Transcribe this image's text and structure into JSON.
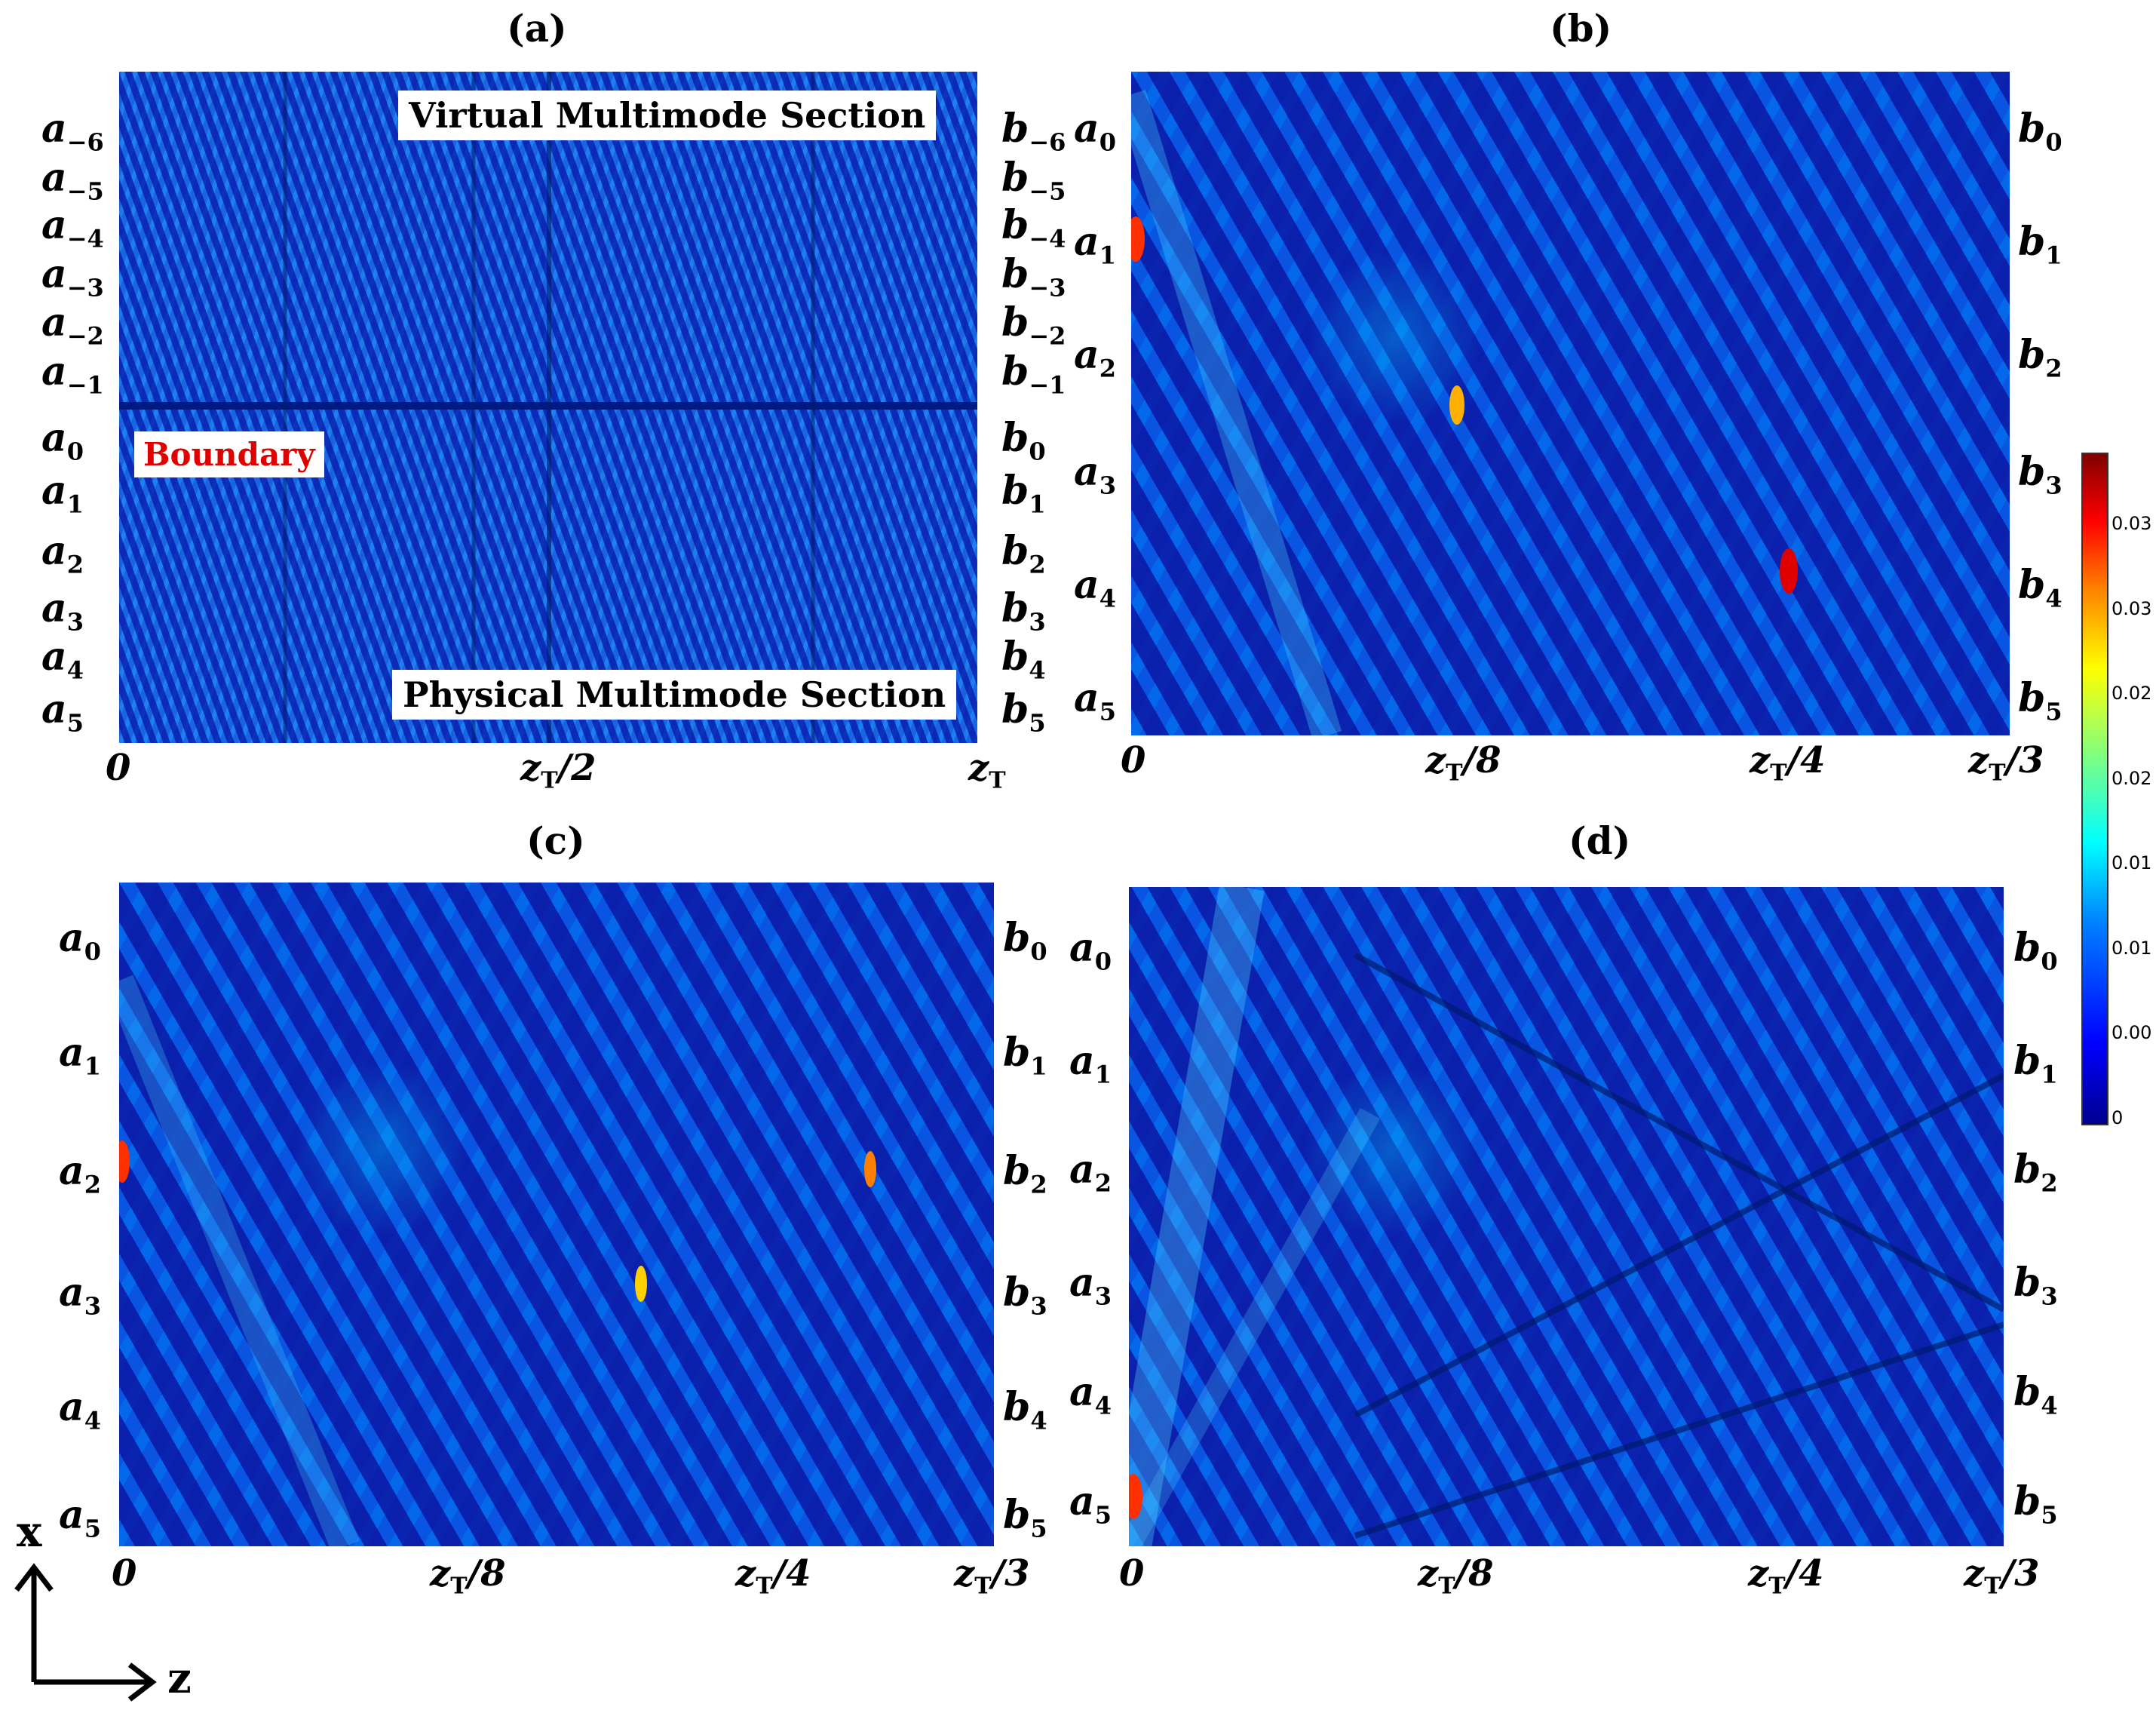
{
  "chart_data": [
    {
      "panel": "(a)",
      "type": "heatmap",
      "x_ticks": [
        "0",
        "z_T/2",
        "z_T"
      ],
      "y_left_labels": [
        "a_-6",
        "a_-5",
        "a_-4",
        "a_-3",
        "a_-2",
        "a_-1",
        "a_0",
        "a_1",
        "a_2",
        "a_3",
        "a_4",
        "a_5"
      ],
      "y_right_labels": [
        "b_-6",
        "b_-5",
        "b_-4",
        "b_-3",
        "b_-2",
        "b_-1",
        "b_0",
        "b_1",
        "b_2",
        "b_3",
        "b_4",
        "b_5"
      ],
      "annotations": [
        "Virtual Multimode Section",
        "Physical Multimode Section",
        "Boundary"
      ]
    },
    {
      "panel": "(b)",
      "type": "heatmap",
      "x_ticks": [
        "0",
        "z_T/8",
        "z_T/4",
        "z_T/3"
      ],
      "y_left_labels": [
        "a_0",
        "a_1",
        "a_2",
        "a_3",
        "a_4",
        "a_5"
      ],
      "y_right_labels": [
        "b_0",
        "b_1",
        "b_2",
        "b_3",
        "b_4",
        "b_5"
      ]
    },
    {
      "panel": "(c)",
      "type": "heatmap",
      "x_ticks": [
        "0",
        "z_T/8",
        "z_T/4",
        "z_T/3"
      ],
      "y_left_labels": [
        "a_0",
        "a_1",
        "a_2",
        "a_3",
        "a_4",
        "a_5"
      ],
      "y_right_labels": [
        "b_0",
        "b_1",
        "b_2",
        "b_3",
        "b_4",
        "b_5"
      ]
    },
    {
      "panel": "(d)",
      "type": "heatmap",
      "x_ticks": [
        "0",
        "z_T/8",
        "z_T/4",
        "z_T/3"
      ],
      "y_left_labels": [
        "a_0",
        "a_1",
        "a_2",
        "a_3",
        "a_4",
        "a_5"
      ],
      "y_right_labels": [
        "b_0",
        "b_1",
        "b_2",
        "b_3",
        "b_4",
        "b_5"
      ]
    }
  ],
  "colorbar": {
    "colormap": "jet",
    "ticks": [
      "0.03",
      "0.03",
      "0.02",
      "0.02",
      "0.01",
      "0.01",
      "0.00",
      "0"
    ]
  },
  "axes_indicator": {
    "x": "x",
    "z": "z"
  }
}
